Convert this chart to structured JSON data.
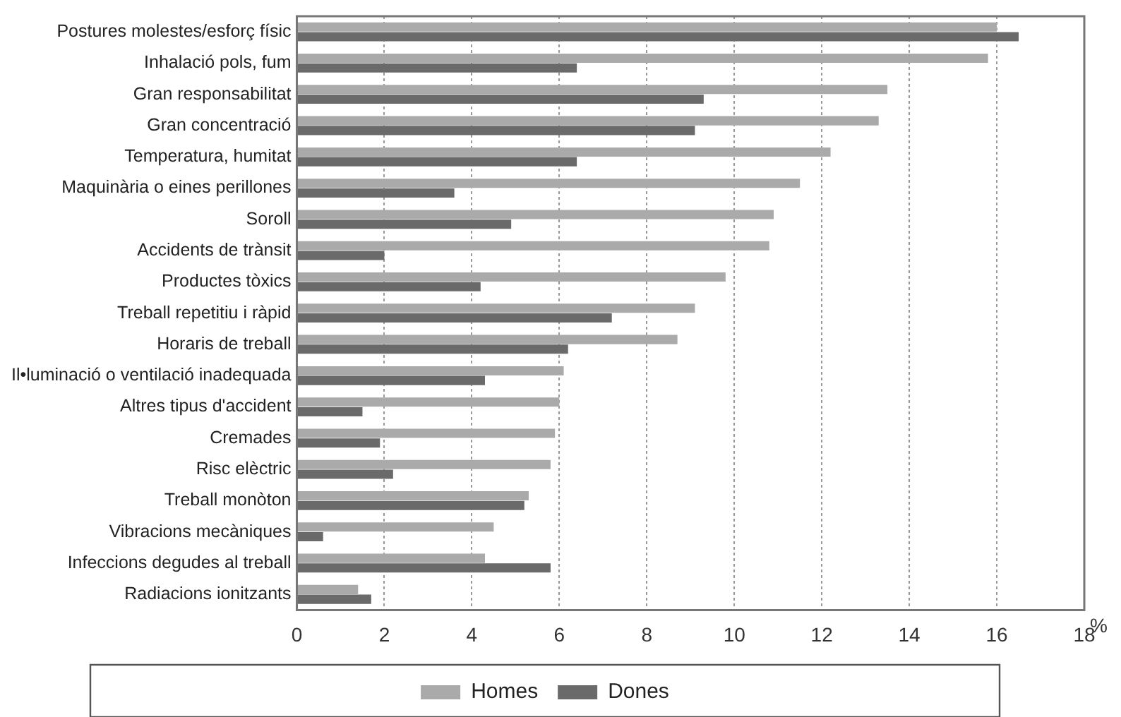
{
  "chart_data": {
    "type": "bar",
    "orientation": "horizontal",
    "xlabel": "%",
    "categories": [
      "Postures molestes/esforç físic",
      "Inhalació pols, fum",
      "Gran responsabilitat",
      "Gran concentració",
      "Temperatura, humitat",
      "Maquinària o eines perillones",
      "Soroll",
      "Accidents de trànsit",
      "Productes tòxics",
      "Treball repetitiu i ràpid",
      "Horaris de treball",
      "Il•luminació o ventilació inadequada",
      "Altres tipus d'accident",
      "Cremades",
      "Risc elèctric",
      "Treball monòton",
      "Vibracions mecàniques",
      "Infeccions degudes al treball",
      "Radiacions ionitzants"
    ],
    "series": [
      {
        "name": "Homes",
        "color": "#aaaaaa",
        "values": [
          16.0,
          15.8,
          13.5,
          13.3,
          12.2,
          11.5,
          10.9,
          10.8,
          9.8,
          9.1,
          8.7,
          6.1,
          6.0,
          5.9,
          5.8,
          5.3,
          4.5,
          4.3,
          1.4
        ]
      },
      {
        "name": "Dones",
        "color": "#6a6a6a",
        "values": [
          16.5,
          6.4,
          9.3,
          9.1,
          6.4,
          3.6,
          4.9,
          2.0,
          4.2,
          7.2,
          6.2,
          4.3,
          1.5,
          1.9,
          2.2,
          5.2,
          0.6,
          5.8,
          1.7
        ]
      }
    ],
    "xlim": [
      0,
      18
    ],
    "xticks": [
      0,
      2,
      4,
      6,
      8,
      10,
      12,
      14,
      16,
      18
    ],
    "grid": "x",
    "legend": "bottom"
  }
}
